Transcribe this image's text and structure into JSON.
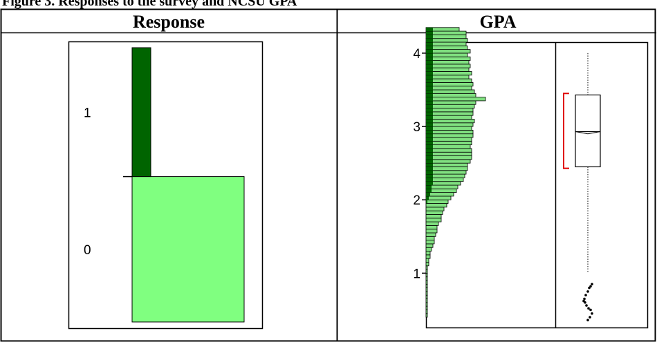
{
  "caption": "Figure 3. Responses to the survey and NCSU GPA",
  "chart_data": [
    {
      "type": "bar",
      "title": "Response",
      "categories": [
        "0",
        "1"
      ],
      "values": [
        0.53,
        0.47
      ],
      "colors": {
        "0": "#80ff80",
        "1": "#006400"
      }
    },
    {
      "type": "bar",
      "title": "GPA",
      "ylim": [
        0.25,
        4.15
      ],
      "yticks": [
        1,
        2,
        3,
        4
      ],
      "bin_width": 0.05,
      "bins_start": 0.4,
      "counts_total": [
        1,
        1,
        1,
        1,
        1,
        1,
        1,
        1,
        1,
        1,
        1,
        1,
        1,
        1,
        2,
        2,
        3,
        3,
        4,
        5,
        6,
        6,
        7,
        8,
        8,
        9,
        11,
        11,
        12,
        13,
        15,
        16,
        18,
        20,
        22,
        23,
        25,
        27,
        28,
        29,
        30,
        30,
        32,
        33,
        33,
        33,
        32,
        33,
        33,
        34,
        34,
        33,
        34,
        35,
        33,
        34,
        34,
        35,
        36,
        43,
        36,
        35,
        33,
        34,
        33,
        31,
        33,
        31,
        32,
        31,
        32,
        30,
        32,
        30,
        29,
        30,
        29,
        29,
        24
      ],
      "counts_highlight": [
        0,
        0,
        0,
        0,
        0,
        0,
        0,
        0,
        0,
        0,
        0,
        0,
        0,
        0,
        0,
        0,
        0,
        0,
        0,
        0,
        0,
        0,
        0,
        0,
        0,
        0,
        0,
        0,
        0,
        0,
        0,
        1,
        2,
        3,
        4,
        4,
        5,
        5,
        5,
        5,
        5,
        5,
        5,
        5,
        5,
        5,
        5,
        5,
        5,
        5,
        5,
        5,
        5,
        5,
        5,
        5,
        5,
        5,
        5,
        5,
        5,
        5,
        5,
        5,
        5,
        5,
        5,
        5,
        5,
        5,
        5,
        5,
        5,
        5,
        5,
        5,
        5,
        5,
        5
      ],
      "boxplot": {
        "whisker_low": 0.35,
        "q1": 2.45,
        "median": 2.93,
        "mean": 2.9,
        "q3": 3.43,
        "whisker_high": 4.0,
        "shortest_half": [
          2.43,
          3.45
        ],
        "outliers": [
          0.36,
          0.4,
          0.45,
          0.5,
          0.52,
          0.56,
          0.6,
          0.62,
          0.65,
          0.7,
          0.75,
          0.8,
          0.82,
          0.85
        ]
      },
      "colors": {
        "bar_fill": "#80e080",
        "bar_highlight": "#006400",
        "bracket": "#e00000"
      }
    }
  ]
}
